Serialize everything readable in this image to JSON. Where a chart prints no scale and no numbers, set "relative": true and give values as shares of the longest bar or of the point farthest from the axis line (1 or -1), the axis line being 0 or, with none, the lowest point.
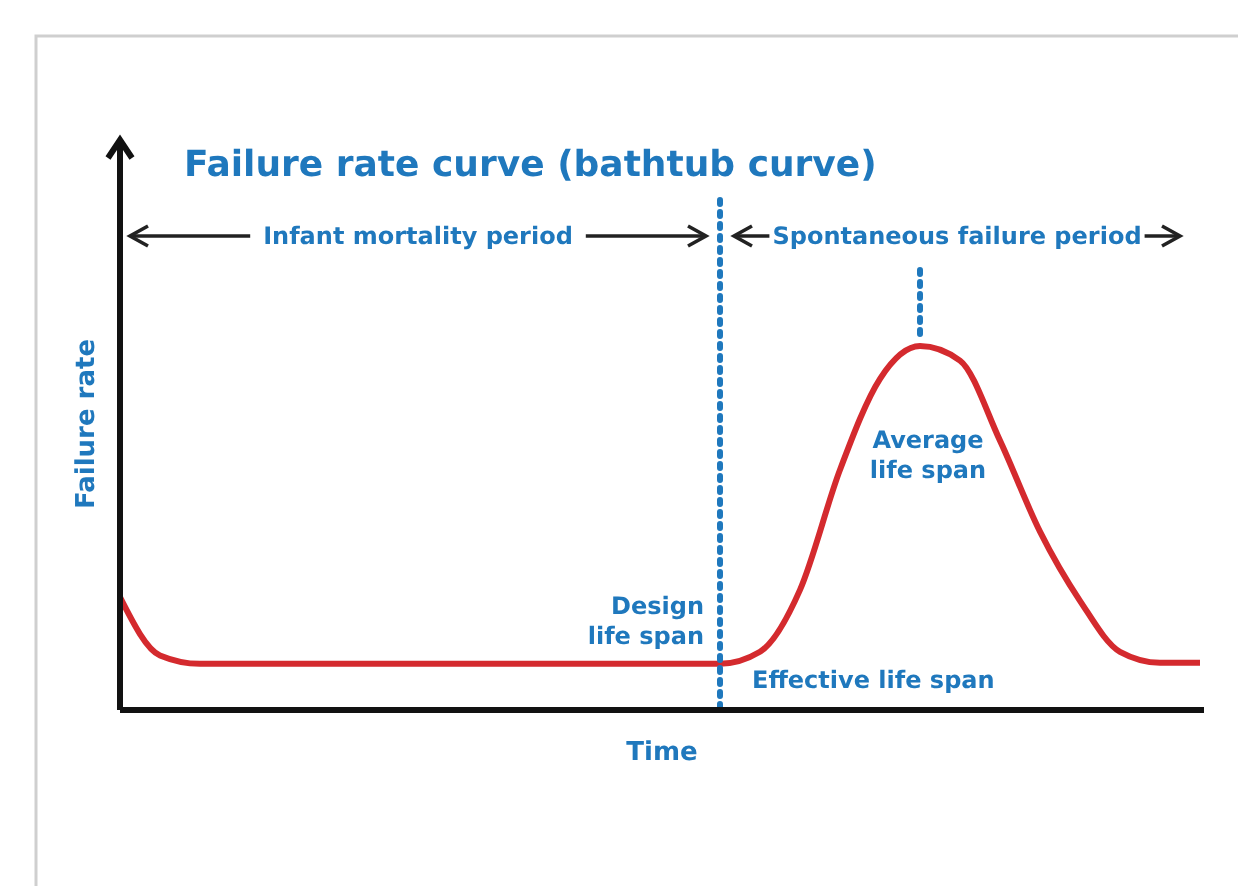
{
  "chart_data": {
    "type": "line",
    "relative": true,
    "title": "Failure rate curve (bathtub curve)",
    "xlabel": "Time",
    "ylabel": "Failure rate",
    "categories": [
      null,
      null,
      null,
      null,
      null,
      null,
      null,
      null,
      null,
      null,
      null,
      null,
      null,
      null,
      null,
      null,
      null,
      null,
      null,
      null,
      null,
      null,
      null,
      null,
      null,
      null,
      null,
      null
    ],
    "series": [
      {
        "color": "#d42a2e",
        "values": [
          0.31,
          0.15,
          0.127,
          0.127,
          0.127,
          0.127,
          0.127,
          0.127,
          0.127,
          0.127,
          0.127,
          0.127,
          0.127,
          0.127,
          0.127,
          0.127,
          0.16,
          0.33,
          0.66,
          0.91,
          1.0,
          0.96,
          0.74,
          0.49,
          0.3,
          0.16,
          0.13,
          0.13
        ]
      }
    ],
    "annotations": [
      "Infant mortality period",
      "Spontaneous failure period",
      "Design life span",
      "Average life span",
      "Effective life span"
    ],
    "line_style": "solid"
  }
}
